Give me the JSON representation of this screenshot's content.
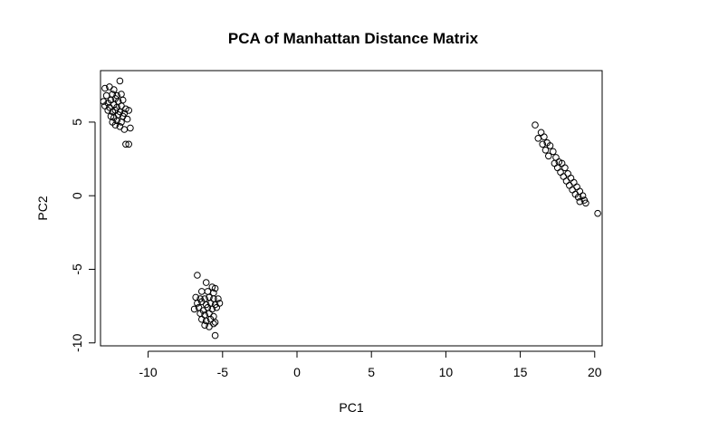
{
  "chart_data": {
    "type": "scatter",
    "title": "PCA of Manhattan Distance Matrix",
    "xlabel": "PC1",
    "ylabel": "PC2",
    "xlim": [
      -13.2,
      20.5
    ],
    "ylim": [
      -10.2,
      8.5
    ],
    "xticks": [
      -10,
      -5,
      0,
      5,
      10,
      15,
      20
    ],
    "yticks": [
      -10,
      -5,
      0,
      5
    ],
    "grid": false,
    "legend": "none",
    "marker": "open-circle",
    "point_color": "#000000",
    "series": [
      {
        "points": [
          [
            -12.9,
            7.3
          ],
          [
            -12.6,
            7.4
          ],
          [
            -12.3,
            7.2
          ],
          [
            -11.9,
            7.8
          ],
          [
            -12.8,
            6.8
          ],
          [
            -12.4,
            6.9
          ],
          [
            -12.1,
            6.8
          ],
          [
            -11.8,
            6.9
          ],
          [
            -13.0,
            6.4
          ],
          [
            -12.7,
            6.3
          ],
          [
            -12.5,
            6.5
          ],
          [
            -12.2,
            6.6
          ],
          [
            -12.0,
            6.4
          ],
          [
            -11.7,
            6.5
          ],
          [
            -12.9,
            6.1
          ],
          [
            -12.6,
            6.0
          ],
          [
            -12.3,
            6.2
          ],
          [
            -12.1,
            6.0
          ],
          [
            -11.8,
            6.1
          ],
          [
            -11.5,
            5.9
          ],
          [
            -12.7,
            5.8
          ],
          [
            -12.4,
            5.7
          ],
          [
            -12.2,
            5.8
          ],
          [
            -11.9,
            5.7
          ],
          [
            -11.6,
            5.6
          ],
          [
            -11.3,
            5.8
          ],
          [
            -12.5,
            5.4
          ],
          [
            -12.3,
            5.3
          ],
          [
            -12.0,
            5.5
          ],
          [
            -11.7,
            5.4
          ],
          [
            -11.4,
            5.2
          ],
          [
            -12.4,
            5.0
          ],
          [
            -12.1,
            5.1
          ],
          [
            -11.8,
            5.0
          ],
          [
            -12.2,
            4.8
          ],
          [
            -11.9,
            4.7
          ],
          [
            -11.6,
            4.5
          ],
          [
            -11.2,
            4.6
          ],
          [
            -11.5,
            3.5
          ],
          [
            -11.3,
            3.5
          ]
        ]
      },
      {
        "points": [
          [
            -6.7,
            -5.4
          ],
          [
            -6.1,
            -5.9
          ],
          [
            -5.7,
            -6.2
          ],
          [
            -5.5,
            -6.3
          ],
          [
            -6.4,
            -6.5
          ],
          [
            -6.0,
            -6.5
          ],
          [
            -5.6,
            -6.6
          ],
          [
            -6.8,
            -6.9
          ],
          [
            -6.5,
            -7.0
          ],
          [
            -6.2,
            -7.0
          ],
          [
            -5.9,
            -6.9
          ],
          [
            -5.6,
            -7.0
          ],
          [
            -5.3,
            -7.0
          ],
          [
            -6.7,
            -7.3
          ],
          [
            -6.4,
            -7.2
          ],
          [
            -6.1,
            -7.4
          ],
          [
            -5.8,
            -7.3
          ],
          [
            -5.5,
            -7.4
          ],
          [
            -5.2,
            -7.3
          ],
          [
            -6.9,
            -7.7
          ],
          [
            -6.6,
            -7.6
          ],
          [
            -6.3,
            -7.8
          ],
          [
            -6.0,
            -7.6
          ],
          [
            -5.7,
            -7.7
          ],
          [
            -5.4,
            -7.6
          ],
          [
            -6.5,
            -8.0
          ],
          [
            -6.2,
            -8.1
          ],
          [
            -5.9,
            -8.0
          ],
          [
            -5.6,
            -8.2
          ],
          [
            -6.4,
            -8.4
          ],
          [
            -6.1,
            -8.5
          ],
          [
            -5.8,
            -8.4
          ],
          [
            -5.5,
            -8.6
          ],
          [
            -6.2,
            -8.8
          ],
          [
            -5.9,
            -8.9
          ],
          [
            -5.6,
            -8.7
          ],
          [
            -5.5,
            -9.5
          ]
        ]
      },
      {
        "points": [
          [
            16.0,
            4.8
          ],
          [
            16.4,
            4.3
          ],
          [
            16.2,
            3.9
          ],
          [
            16.6,
            4.0
          ],
          [
            16.8,
            3.6
          ],
          [
            16.5,
            3.5
          ],
          [
            17.0,
            3.4
          ],
          [
            16.7,
            3.1
          ],
          [
            17.2,
            3.0
          ],
          [
            16.9,
            2.7
          ],
          [
            17.4,
            2.6
          ],
          [
            17.6,
            2.3
          ],
          [
            17.3,
            2.2
          ],
          [
            17.8,
            2.2
          ],
          [
            17.5,
            1.9
          ],
          [
            18.0,
            1.9
          ],
          [
            17.7,
            1.6
          ],
          [
            18.2,
            1.5
          ],
          [
            17.9,
            1.3
          ],
          [
            18.4,
            1.2
          ],
          [
            18.1,
            1.0
          ],
          [
            18.6,
            0.9
          ],
          [
            18.3,
            0.7
          ],
          [
            18.8,
            0.6
          ],
          [
            18.5,
            0.4
          ],
          [
            19.0,
            0.3
          ],
          [
            18.7,
            0.1
          ],
          [
            19.2,
            0.0
          ],
          [
            18.9,
            -0.1
          ],
          [
            19.3,
            -0.3
          ],
          [
            19.0,
            -0.4
          ],
          [
            19.4,
            -0.5
          ],
          [
            20.2,
            -1.2
          ]
        ]
      }
    ]
  }
}
